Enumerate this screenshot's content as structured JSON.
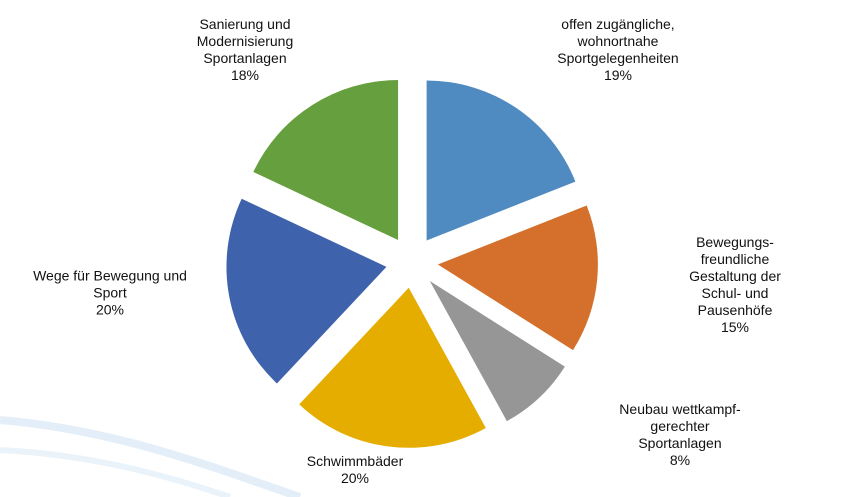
{
  "chart_data": {
    "type": "pie",
    "categories": [
      "offen zugängliche,\nwohnortnahe\nSportgelegenheiten",
      "Bewegungs-freundliche\nGestaltung der Schul- und\nPausenhöfe",
      "Neubau wettkampf-gerechter\nSportanlagen",
      "Schwimmbäder",
      "Wege für Bewegung und\nSport",
      "Sanierung und\nModernisierung\nSportanlagen"
    ],
    "values": [
      19,
      15,
      8,
      20,
      20,
      18
    ],
    "value_labels": [
      "19%",
      "15%",
      "8%",
      "20%",
      "20%",
      "18%"
    ],
    "colors": [
      "#4f8ac0",
      "#d4702b",
      "#969696",
      "#e5ad00",
      "#3f62ad",
      "#66a03e"
    ]
  }
}
